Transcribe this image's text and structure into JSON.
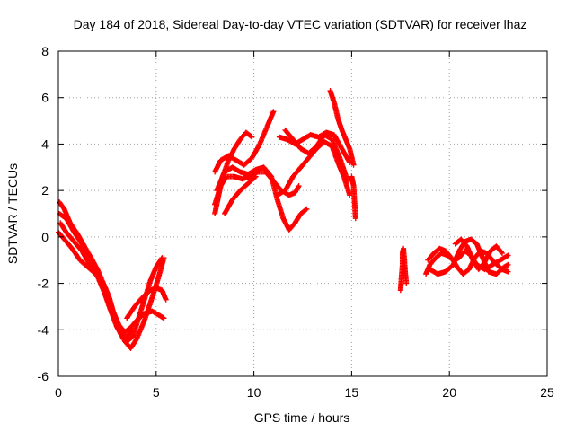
{
  "chart_data": {
    "type": "scatter",
    "title": "Day 184 of 2018, Sidereal Day-to-day VTEC variation (SDTVAR) for receiver lhaz",
    "xlabel": "GPS time / hours",
    "ylabel": "SDTVAR / TECUs",
    "xlim": [
      0,
      25
    ],
    "ylim": [
      -6,
      8
    ],
    "x_ticks": [
      0,
      5,
      10,
      15,
      20,
      25
    ],
    "x_tick_labels": [
      "0",
      "5",
      "10",
      "15",
      "20",
      "25"
    ],
    "y_ticks": [
      -6,
      -4,
      -2,
      0,
      2,
      4,
      6,
      8
    ],
    "y_tick_labels": [
      "-6",
      "-4",
      "-2",
      "0",
      "2",
      "4",
      "6",
      "8"
    ],
    "grid": true,
    "marker": "+",
    "series": [
      {
        "name": "SDTVAR",
        "color": "#ff0000",
        "tracks": [
          [
            [
              0.05,
              1.5
            ],
            [
              0.3,
              1.2
            ],
            [
              0.6,
              0.6
            ],
            [
              1.0,
              0.1
            ],
            [
              1.4,
              -0.5
            ],
            [
              1.8,
              -1.1
            ],
            [
              2.2,
              -2.0
            ],
            [
              2.6,
              -3.0
            ],
            [
              3.0,
              -3.9
            ],
            [
              3.4,
              -4.5
            ],
            [
              3.7,
              -4.8
            ],
            [
              4.0,
              -4.4
            ],
            [
              4.4,
              -3.6
            ],
            [
              4.8,
              -2.6
            ],
            [
              5.1,
              -1.8
            ],
            [
              5.4,
              -0.9
            ]
          ],
          [
            [
              0.1,
              0.6
            ],
            [
              0.4,
              0.2
            ],
            [
              0.8,
              -0.2
            ],
            [
              1.2,
              -0.6
            ],
            [
              1.6,
              -1.2
            ],
            [
              2.0,
              -1.7
            ],
            [
              2.4,
              -2.5
            ],
            [
              2.8,
              -3.4
            ],
            [
              3.2,
              -4.2
            ],
            [
              3.5,
              -4.5
            ],
            [
              3.8,
              -4.3
            ],
            [
              4.1,
              -3.5
            ],
            [
              4.4,
              -2.7
            ],
            [
              4.7,
              -1.9
            ],
            [
              5.0,
              -1.3
            ],
            [
              5.3,
              -0.9
            ]
          ],
          [
            [
              0.05,
              1.0
            ],
            [
              0.4,
              0.8
            ],
            [
              0.8,
              0.2
            ],
            [
              1.2,
              -0.3
            ],
            [
              1.6,
              -0.8
            ],
            [
              2.0,
              -1.4
            ],
            [
              2.4,
              -2.2
            ],
            [
              2.8,
              -3.2
            ],
            [
              3.1,
              -3.8
            ],
            [
              3.4,
              -4.1
            ],
            [
              3.7,
              -3.9
            ],
            [
              4.0,
              -3.6
            ],
            [
              4.4,
              -3.3
            ],
            [
              4.8,
              -3.2
            ],
            [
              5.2,
              -3.4
            ],
            [
              5.4,
              -3.5
            ]
          ],
          [
            [
              0.0,
              0.2
            ],
            [
              0.3,
              -0.1
            ],
            [
              0.7,
              -0.5
            ],
            [
              1.1,
              -1.0
            ],
            [
              1.5,
              -1.3
            ],
            [
              1.9,
              -1.6
            ],
            [
              2.3,
              -2.0
            ],
            [
              2.6,
              -2.6
            ],
            [
              2.9,
              -3.5
            ],
            [
              3.2,
              -4.1
            ],
            [
              3.5,
              -4.3
            ],
            [
              3.8,
              -4.0
            ]
          ],
          [
            [
              3.5,
              -3.5
            ],
            [
              3.9,
              -3.0
            ],
            [
              4.3,
              -2.6
            ],
            [
              4.7,
              -2.3
            ],
            [
              5.0,
              -2.2
            ],
            [
              5.3,
              -2.3
            ],
            [
              5.5,
              -2.7
            ]
          ],
          [
            [
              8.0,
              1.0
            ],
            [
              8.2,
              1.8
            ],
            [
              8.4,
              2.6
            ],
            [
              8.7,
              3.3
            ],
            [
              9.0,
              3.8
            ],
            [
              9.3,
              4.2
            ],
            [
              9.6,
              4.5
            ],
            [
              9.9,
              4.3
            ]
          ],
          [
            [
              8.0,
              2.8
            ],
            [
              8.3,
              3.3
            ],
            [
              8.7,
              3.5
            ],
            [
              9.1,
              3.3
            ],
            [
              9.5,
              3.1
            ],
            [
              9.9,
              3.4
            ],
            [
              10.3,
              4.0
            ],
            [
              10.7,
              4.8
            ],
            [
              11.0,
              5.4
            ]
          ],
          [
            [
              8.0,
              1.4
            ],
            [
              8.3,
              2.2
            ],
            [
              8.6,
              2.6
            ],
            [
              9.0,
              2.6
            ],
            [
              9.4,
              2.5
            ],
            [
              9.8,
              2.6
            ],
            [
              10.2,
              2.8
            ],
            [
              10.6,
              2.8
            ],
            [
              11.0,
              2.4
            ],
            [
              11.4,
              2.0
            ],
            [
              11.8,
              1.8
            ],
            [
              12.1,
              1.9
            ],
            [
              12.3,
              2.2
            ]
          ],
          [
            [
              8.1,
              2.0
            ],
            [
              8.5,
              2.8
            ],
            [
              8.9,
              3.0
            ],
            [
              9.3,
              2.8
            ],
            [
              9.7,
              2.7
            ],
            [
              10.1,
              2.9
            ],
            [
              10.5,
              3.0
            ],
            [
              10.9,
              2.6
            ],
            [
              11.2,
              1.6
            ],
            [
              11.5,
              0.8
            ],
            [
              11.8,
              0.3
            ],
            [
              12.1,
              0.6
            ],
            [
              12.4,
              1.0
            ],
            [
              12.7,
              1.2
            ]
          ],
          [
            [
              8.5,
              1.0
            ],
            [
              8.9,
              1.6
            ],
            [
              9.3,
              2.0
            ],
            [
              9.7,
              2.3
            ],
            [
              10.1,
              2.6
            ]
          ],
          [
            [
              11.3,
              4.3
            ],
            [
              11.7,
              4.2
            ],
            [
              12.1,
              4.0
            ],
            [
              12.5,
              4.2
            ],
            [
              12.9,
              4.4
            ],
            [
              13.3,
              4.3
            ],
            [
              13.7,
              4.5
            ],
            [
              14.1,
              4.4
            ],
            [
              14.5,
              3.8
            ],
            [
              14.9,
              3.2
            ]
          ],
          [
            [
              11.6,
              4.6
            ],
            [
              12.0,
              4.2
            ],
            [
              12.4,
              3.8
            ],
            [
              12.8,
              3.6
            ],
            [
              13.2,
              3.9
            ],
            [
              13.6,
              4.4
            ],
            [
              14.0,
              4.2
            ],
            [
              14.4,
              3.4
            ],
            [
              14.8,
              2.4
            ]
          ],
          [
            [
              11.2,
              1.8
            ],
            [
              11.6,
              2.0
            ],
            [
              12.0,
              2.6
            ],
            [
              12.4,
              3.0
            ],
            [
              12.8,
              3.4
            ],
            [
              13.2,
              3.8
            ],
            [
              13.6,
              4.1
            ],
            [
              14.0,
              3.9
            ],
            [
              14.3,
              3.2
            ],
            [
              14.6,
              2.6
            ],
            [
              14.9,
              1.8
            ]
          ],
          [
            [
              13.9,
              6.3
            ],
            [
              14.1,
              5.8
            ],
            [
              14.3,
              5.1
            ],
            [
              14.5,
              4.6
            ],
            [
              14.7,
              4.2
            ],
            [
              14.9,
              3.8
            ],
            [
              15.1,
              3.1
            ]
          ],
          [
            [
              15.0,
              2.6
            ],
            [
              15.1,
              2.2
            ],
            [
              15.2,
              0.8
            ]
          ],
          [
            [
              17.5,
              -2.3
            ],
            [
              17.55,
              -1.7
            ],
            [
              17.6,
              -1.2
            ],
            [
              17.6,
              -0.7
            ],
            [
              17.65,
              -0.5
            ],
            [
              17.7,
              -1.0
            ],
            [
              17.75,
              -1.6
            ],
            [
              17.8,
              -2.0
            ]
          ],
          [
            [
              18.8,
              -1.6
            ],
            [
              19.0,
              -1.2
            ],
            [
              19.3,
              -0.9
            ],
            [
              19.6,
              -0.7
            ],
            [
              19.9,
              -0.8
            ],
            [
              20.2,
              -1.0
            ],
            [
              20.5,
              -0.9
            ],
            [
              20.8,
              -0.6
            ],
            [
              21.1,
              -0.8
            ],
            [
              21.4,
              -1.2
            ],
            [
              21.8,
              -1.4
            ],
            [
              22.2,
              -1.2
            ],
            [
              22.6,
              -1.0
            ],
            [
              23.0,
              -0.8
            ]
          ],
          [
            [
              18.9,
              -1.0
            ],
            [
              19.2,
              -0.7
            ],
            [
              19.5,
              -0.5
            ],
            [
              19.8,
              -0.6
            ],
            [
              20.1,
              -0.9
            ],
            [
              20.4,
              -1.3
            ],
            [
              20.7,
              -1.6
            ],
            [
              21.0,
              -1.4
            ],
            [
              21.3,
              -0.9
            ],
            [
              21.6,
              -0.6
            ],
            [
              21.9,
              -0.7
            ],
            [
              22.3,
              -1.1
            ],
            [
              22.7,
              -1.4
            ],
            [
              23.0,
              -1.5
            ]
          ],
          [
            [
              19.0,
              -1.4
            ],
            [
              19.4,
              -1.6
            ],
            [
              19.8,
              -1.5
            ],
            [
              20.2,
              -1.2
            ],
            [
              20.5,
              -0.6
            ],
            [
              20.8,
              -0.2
            ],
            [
              21.1,
              -0.1
            ],
            [
              21.4,
              -0.3
            ],
            [
              21.7,
              -0.9
            ],
            [
              22.0,
              -1.5
            ],
            [
              22.4,
              -1.6
            ],
            [
              22.8,
              -1.3
            ],
            [
              23.0,
              -1.2
            ]
          ],
          [
            [
              20.3,
              -0.3
            ],
            [
              20.6,
              -0.1
            ],
            [
              20.9,
              -0.4
            ],
            [
              21.2,
              -1.0
            ],
            [
              21.5,
              -1.4
            ],
            [
              21.8,
              -1.1
            ],
            [
              22.1,
              -0.6
            ],
            [
              22.4,
              -0.4
            ],
            [
              22.7,
              -0.7
            ]
          ]
        ]
      }
    ]
  }
}
